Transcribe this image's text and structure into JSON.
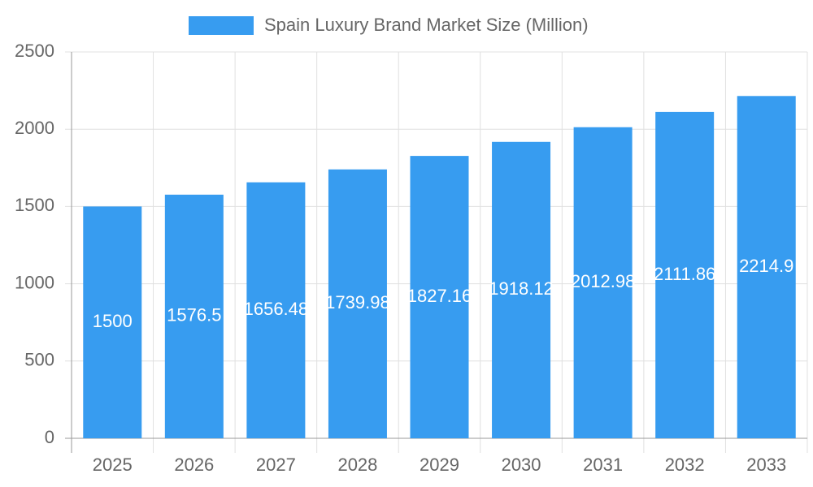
{
  "chart_data": {
    "type": "bar",
    "categories": [
      "2025",
      "2026",
      "2027",
      "2028",
      "2029",
      "2030",
      "2031",
      "2032",
      "2033"
    ],
    "series": [
      {
        "name": "Spain Luxury Brand Market Size (Million)",
        "color": "#379cf0",
        "values": [
          1500,
          1576.5,
          1656.48,
          1739.98,
          1827.16,
          1918.12,
          2012.98,
          2111.86,
          2214.9
        ]
      }
    ],
    "ylim": [
      0,
      2500
    ],
    "yticks": [
      0,
      500,
      1000,
      1500,
      2000,
      2500
    ],
    "grid": true,
    "legend": "top"
  }
}
